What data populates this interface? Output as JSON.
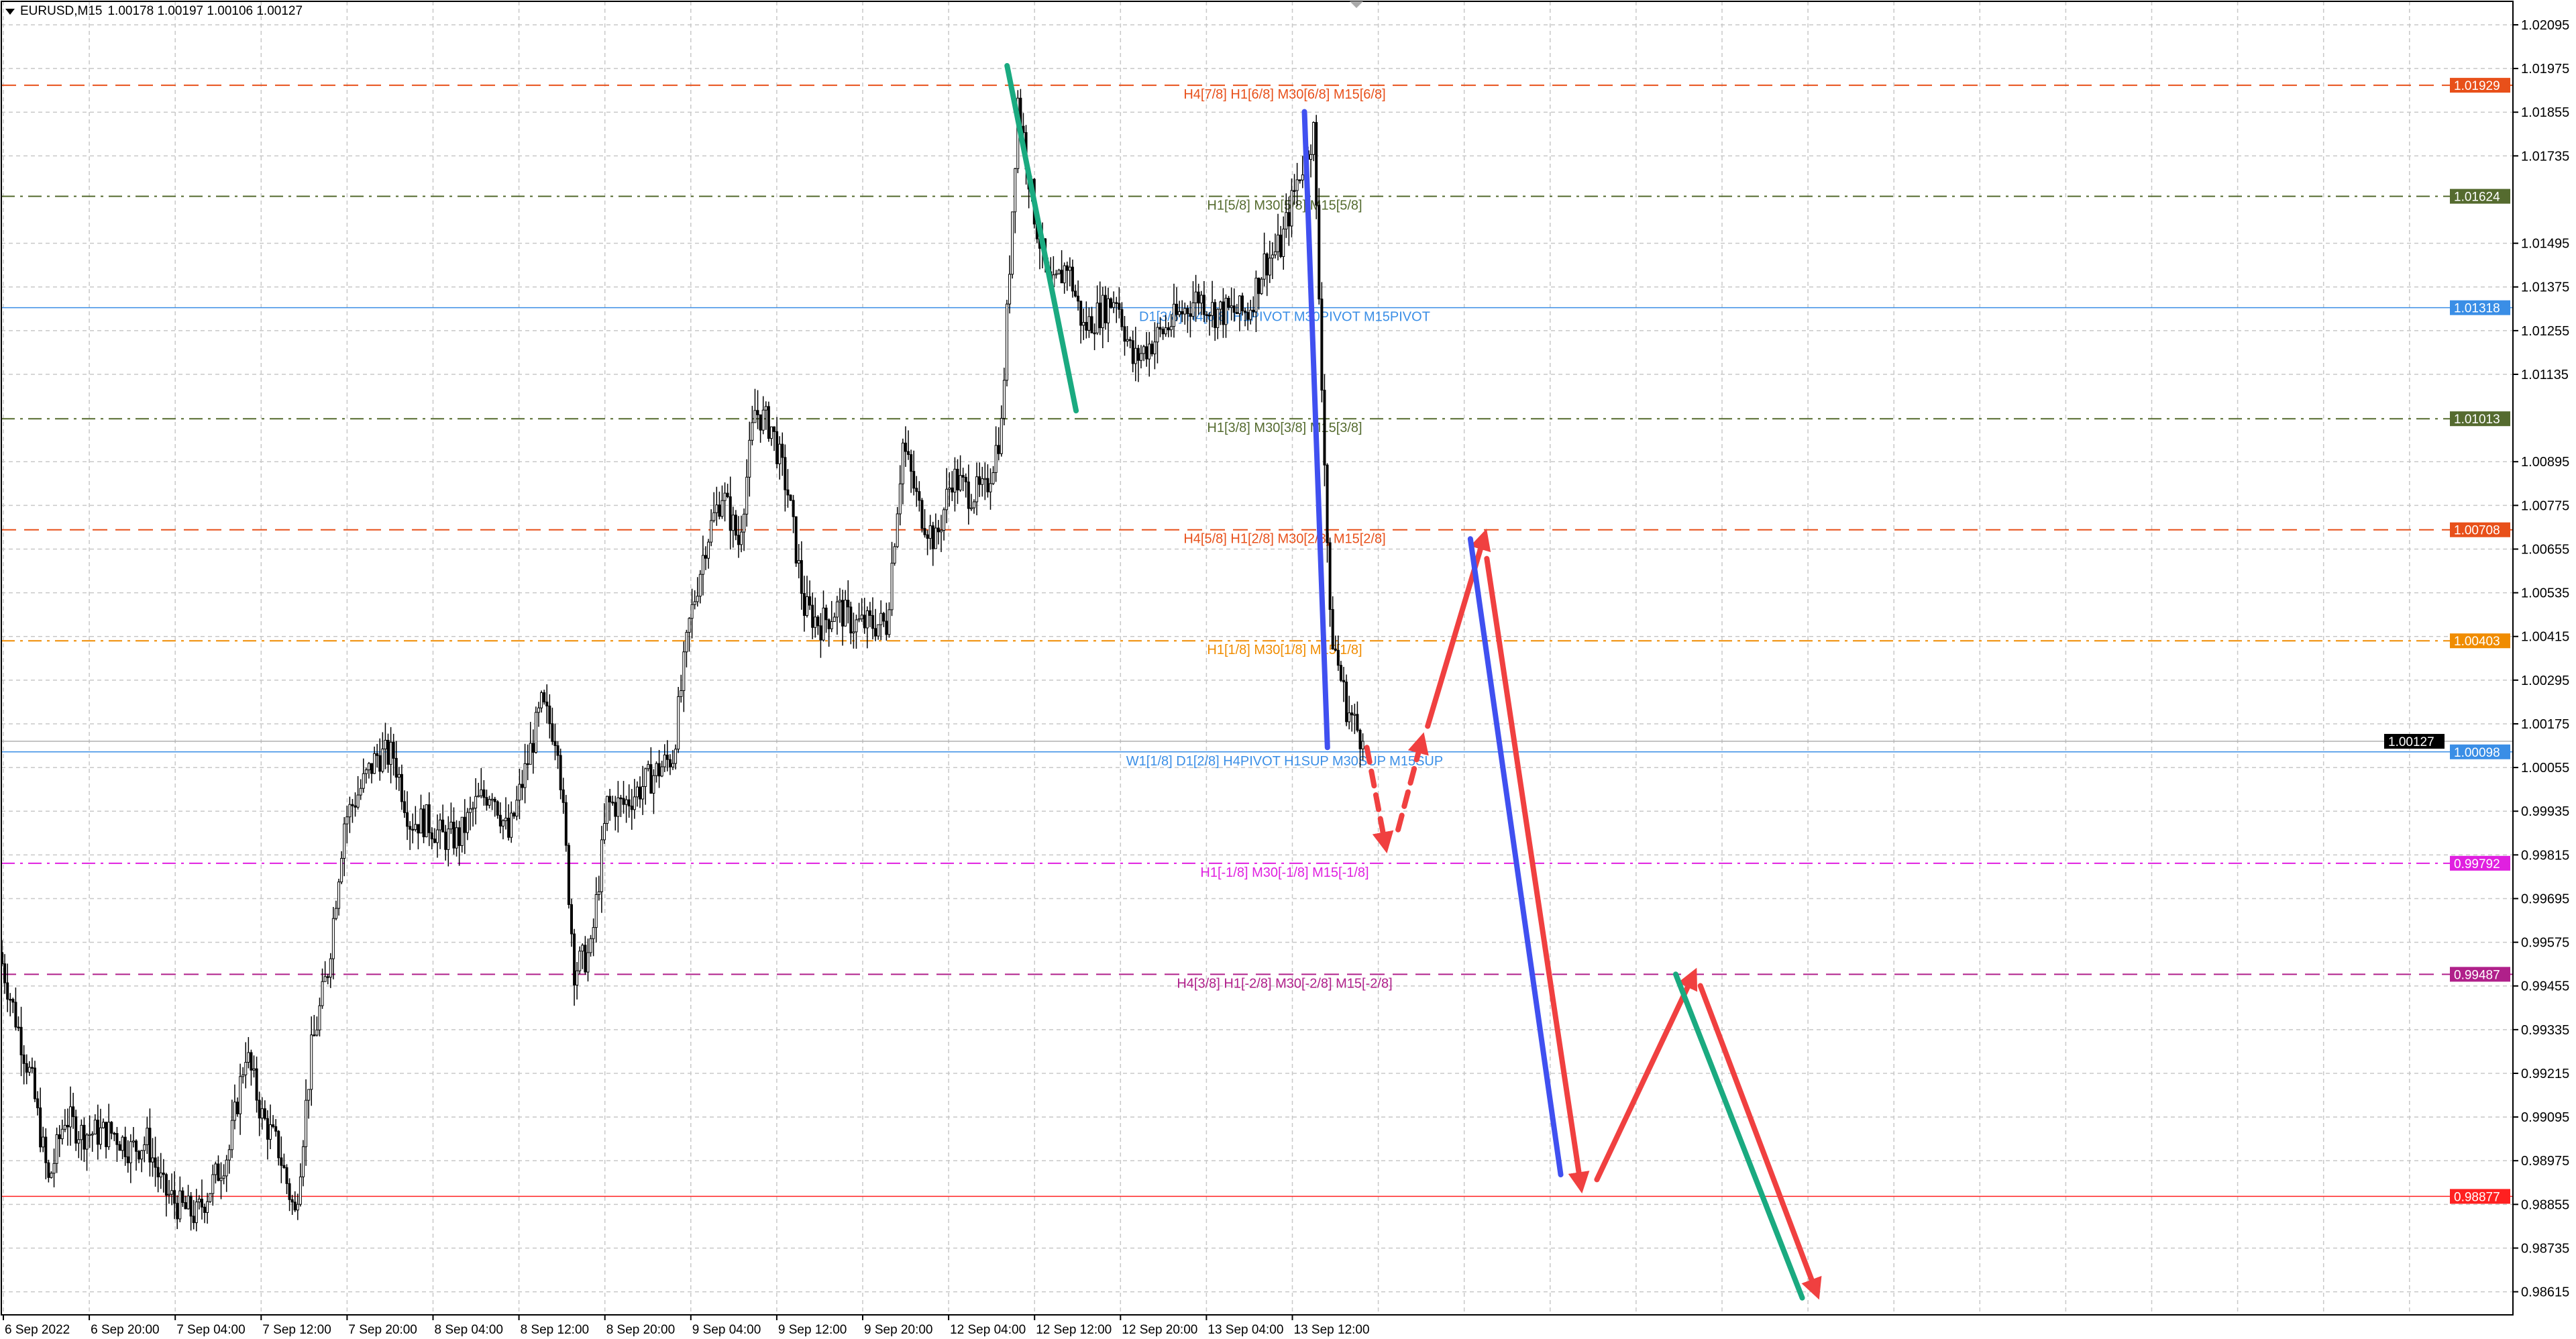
{
  "header": {
    "symbol": "EURUSD,M15",
    "ohlc": "1.00178 1.00197 1.00106 1.00127"
  },
  "chart_data": {
    "type": "candlestick",
    "y_ticks": [
      1.02095,
      1.01975,
      1.01855,
      1.01735,
      1.01495,
      1.01375,
      1.01255,
      1.01135,
      1.00895,
      1.00775,
      1.00655,
      1.00535,
      1.00415,
      1.00295,
      1.00175,
      1.00055,
      0.99935,
      0.99815,
      0.99695,
      0.99575,
      0.99455,
      0.99335,
      0.99215,
      0.99095,
      0.98975,
      0.98855,
      0.98735,
      0.98615
    ],
    "y_tick_labels": [
      "1.02095",
      "1.01975",
      "1.01855",
      "1.01735",
      "1.01495",
      "1.01375",
      "1.01255",
      "1.01135",
      "1.00895",
      "1.00775",
      "1.00655",
      "1.00535",
      "1.00415",
      "1.00295",
      "1.00175",
      "1.00055",
      "0.99935",
      "0.99815",
      "0.99695",
      "0.99575",
      "0.99455",
      "0.99335",
      "0.99215",
      "0.99095",
      "0.98975",
      "0.98855",
      "0.98735",
      "0.98615"
    ],
    "x_labels": [
      "6 Sep 2022",
      "6 Sep 20:00",
      "7 Sep 04:00",
      "7 Sep 12:00",
      "7 Sep 20:00",
      "8 Sep 04:00",
      "8 Sep 12:00",
      "8 Sep 20:00",
      "9 Sep 04:00",
      "9 Sep 12:00",
      "9 Sep 20:00",
      "12 Sep 04:00",
      "12 Sep 12:00",
      "12 Sep 20:00",
      "13 Sep 04:00",
      "13 Sep 12:00"
    ],
    "approx_closes": [
      0.99547,
      0.99366,
      0.99186,
      0.98915,
      0.99096,
      0.99051,
      0.99051,
      0.99051,
      0.99006,
      0.99028,
      0.98893,
      0.98848,
      0.98825,
      0.98915,
      0.99006,
      0.99276,
      0.99096,
      0.99006,
      0.98825,
      0.99276,
      0.99502,
      0.99908,
      0.99998,
      1.00088,
      1.00088,
      0.99908,
      0.99908,
      0.99863,
      0.99863,
      0.99953,
      0.99998,
      0.99863,
      1.00043,
      1.00223,
      1.00133,
      0.99502,
      0.99547,
      0.99953,
      0.99953,
      0.99998,
      1.00043,
      1.00088,
      1.00449,
      1.00674,
      1.0081,
      1.00674,
      1.01035,
      1.0099,
      1.0081,
      1.00494,
      1.00449,
      1.00494,
      1.00449,
      1.00449,
      1.00449,
      1.00945,
      1.00765,
      1.00674,
      1.00855,
      1.0081,
      1.0081,
      1.0099,
      1.01892,
      1.01576,
      1.01351,
      1.01441,
      1.01261,
      1.01306,
      1.01351,
      1.0117,
      1.01216,
      1.01261,
      1.01306,
      1.01351,
      1.01306,
      1.01306,
      1.01306,
      1.01441,
      1.01486,
      1.01667,
      1.01802,
      1.00449,
      1.00223,
      1.00127
    ],
    "current_price": {
      "value": 1.00127,
      "label": "1.00127",
      "color": "#000000"
    },
    "levels": [
      {
        "price": 1.01929,
        "tag": "1.01929",
        "text": "H4[7/8] H1[6/8] M30[6/8] M15[6/8]",
        "color": "#e8501a",
        "style": "dash"
      },
      {
        "price": 1.01624,
        "tag": "1.01624",
        "text": "H1[5/8] M30[5/8] M15[5/8]",
        "color": "#556b2f",
        "style": "dashdot"
      },
      {
        "price": 1.01318,
        "tag": "1.01318",
        "text": "D1[3/8] H4[6/8] H1PIVOT M30PIVOT M15PIVOT",
        "color": "#3a8ee6",
        "style": "solid"
      },
      {
        "price": 1.01013,
        "tag": "1.01013",
        "text": "H1[3/8] M30[3/8] M15[3/8]",
        "color": "#556b2f",
        "style": "dashdot"
      },
      {
        "price": 1.00708,
        "tag": "1.00708",
        "text": "H4[5/8] H1[2/8] M30[2/8] M15[2/8]",
        "color": "#e8501a",
        "style": "dash"
      },
      {
        "price": 1.00403,
        "tag": "1.00403",
        "text": "H1[1/8] M30[1/8] M15[1/8]",
        "color": "#f08c00",
        "style": "dashdot"
      },
      {
        "price": 1.00098,
        "tag": "1.00098",
        "text": "W1[1/8] D1[2/8] H4PIVOT H1SUP M30SUP M15SUP",
        "color": "#3a8ee6",
        "style": "solid"
      },
      {
        "price": 0.99792,
        "tag": "0.99792",
        "text": "H1[-1/8] M30[-1/8] M15[-1/8]",
        "color": "#e020e0",
        "style": "dashdot"
      },
      {
        "price": 0.99487,
        "tag": "0.99487",
        "text": "H4[3/8] H1[-2/8] M30[-2/8] M15[-2/8]",
        "color": "#b0208a",
        "style": "dash"
      },
      {
        "price": 0.98877,
        "tag": "0.98877",
        "text": "",
        "color": "#ff2020",
        "style": "solid"
      }
    ],
    "drawings": [
      {
        "type": "trendline",
        "color": "#1aaa80"
      },
      {
        "type": "trendline",
        "color": "#4050f0"
      },
      {
        "type": "arrow-dashed",
        "color": "#f04040"
      },
      {
        "type": "arrow",
        "color": "#f04040"
      },
      {
        "type": "trendline",
        "color": "#4050f0"
      },
      {
        "type": "arrow",
        "color": "#f04040"
      },
      {
        "type": "arrow",
        "color": "#f04040"
      },
      {
        "type": "trendline",
        "color": "#1aaa80"
      },
      {
        "type": "arrow",
        "color": "#f04040"
      }
    ]
  }
}
